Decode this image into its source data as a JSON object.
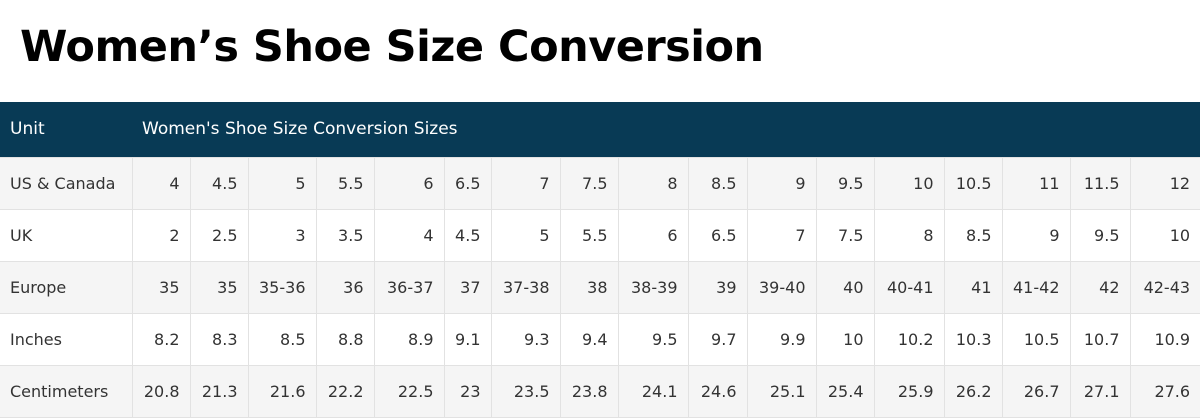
{
  "header": {
    "title": "Women’s Shoe Size Conversion"
  },
  "table": {
    "columns": [
      "Unit",
      "Women's Shoe Size Conversion Sizes"
    ],
    "rows": [
      [
        "US & Canada",
        "4",
        "4.5",
        "5",
        "5.5",
        "6",
        "6.5",
        "7",
        "7.5",
        "8",
        "8.5",
        "9",
        "9.5",
        "10",
        "10.5",
        "11",
        "11.5",
        "12"
      ],
      [
        "UK",
        "2",
        "2.5",
        "3",
        "3.5",
        "4",
        "4.5",
        "5",
        "5.5",
        "6",
        "6.5",
        "7",
        "7.5",
        "8",
        "8.5",
        "9",
        "9.5",
        "10"
      ],
      [
        "Europe",
        "35",
        "35",
        "35-36",
        "36",
        "36-37",
        "37",
        "37-38",
        "38",
        "38-39",
        "39",
        "39-40",
        "40",
        "40-41",
        "41",
        "41-42",
        "42",
        "42-43"
      ],
      [
        "Inches",
        "8.2",
        "8.3",
        "8.5",
        "8.8",
        "8.9",
        "9.1",
        "9.3",
        "9.4",
        "9.5",
        "9.7",
        "9.9",
        "10",
        "10.2",
        "10.3",
        "10.5",
        "10.7",
        "10.9"
      ],
      [
        "Centimeters",
        "20.8",
        "21.3",
        "21.6",
        "22.2",
        "22.5",
        "23",
        "23.5",
        "23.8",
        "24.1",
        "24.6",
        "25.1",
        "25.4",
        "25.9",
        "26.2",
        "26.7",
        "27.1",
        "27.6"
      ]
    ]
  }
}
